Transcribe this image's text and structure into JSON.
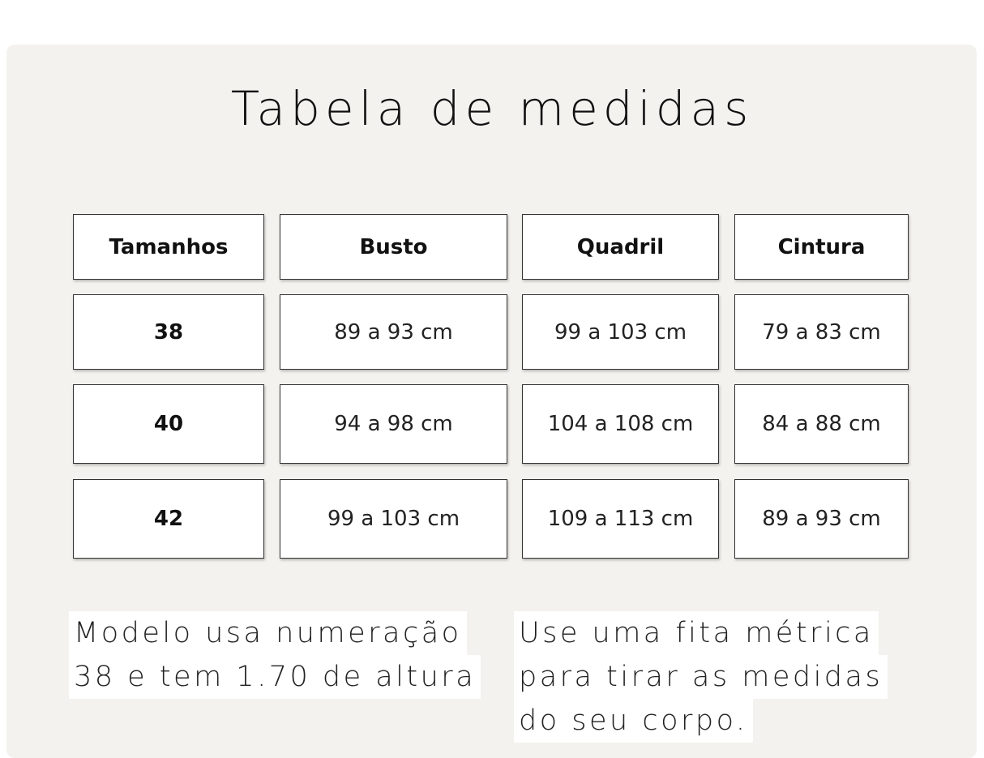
{
  "title": "Tabela de medidas",
  "table": {
    "header": [
      "Tamanhos",
      "Busto",
      "Quadril",
      "Cintura"
    ],
    "rows": [
      [
        "38",
        "89 a 93 cm",
        "99 a 103 cm",
        "79 a 83 cm"
      ],
      [
        "40",
        "94 a 98 cm",
        "104 a 108 cm",
        "84 a 88 cm"
      ],
      [
        "42",
        "99 a 103 cm",
        "109 a 113 cm",
        "89 a 93 cm"
      ]
    ]
  },
  "notes": [
    {
      "lines": [
        "Modelo usa numeração",
        "38 e tem 1.70 de altura"
      ]
    },
    {
      "lines": [
        "Use uma fita métrica",
        "para tirar as medidas",
        "do seu corpo."
      ]
    }
  ]
}
